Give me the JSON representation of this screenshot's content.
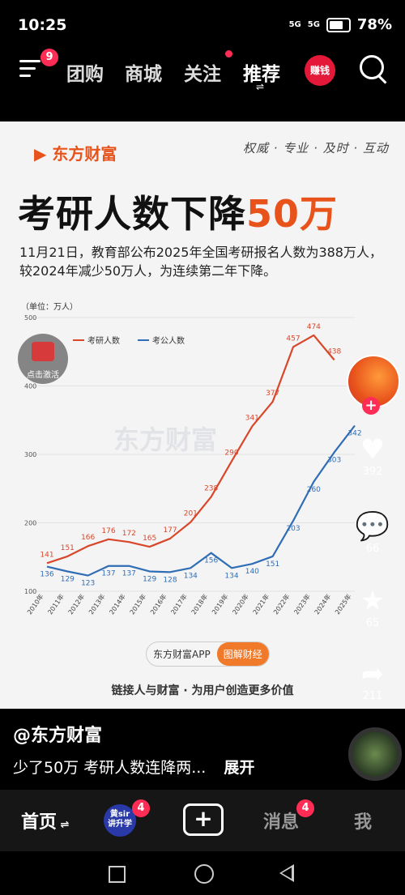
{
  "status": {
    "time": "10:25",
    "net1": "5G",
    "net2": "5G",
    "battery": "78%"
  },
  "nav": {
    "menu_badge": "9",
    "tabs": [
      "团购",
      "商城",
      "关注",
      "推荐"
    ],
    "earn_label": "赚钱"
  },
  "card": {
    "brand": "东方财富",
    "slogan": "权威 · 专业 · 及时 · 互动",
    "headline_main": "考研人数下降",
    "headline_accent": "50万",
    "description": "11月21日，教育部公布2025年全国考研报名人数为388万人，较2024年减少50万人，为连续第二年下降。",
    "unit": "（单位：万人）",
    "watermark": "东方财富",
    "app_label": "东方财富APP",
    "app_button": "图解财经",
    "tagline": "链接人与财富 · 为用户创造更多价值",
    "promo_label": "点击激活"
  },
  "chart_data": {
    "type": "line",
    "x": [
      "2010年",
      "2011年",
      "2012年",
      "2013年",
      "2014年",
      "2015年",
      "2016年",
      "2017年",
      "2018年",
      "2019年",
      "2020年",
      "2021年",
      "2022年",
      "2023年",
      "2024年",
      "2025年"
    ],
    "ylim": [
      100,
      500
    ],
    "yticks": [
      100,
      200,
      300,
      400,
      500
    ],
    "series": [
      {
        "name": "考研人数",
        "color": "#d9472b",
        "values": [
          141,
          151,
          166,
          176,
          172,
          165,
          177,
          201,
          238,
          290,
          341,
          377,
          457,
          474,
          438,
          null
        ]
      },
      {
        "name": "考公人数",
        "color": "#2f6db5",
        "values": [
          136,
          129,
          123,
          137,
          137,
          129,
          128,
          134,
          156,
          134,
          140,
          151,
          203,
          260,
          303,
          342
        ]
      }
    ]
  },
  "side": {
    "likes": "392",
    "comments": "66",
    "favorites": "65",
    "shares": "211"
  },
  "post": {
    "author": "@东方财富",
    "caption": "少了50万 考研人数连降两...",
    "expand": "展开"
  },
  "bottom": {
    "home": "首页",
    "learn_line1": "黄sir",
    "learn_line2": "讲升学",
    "learn_badge": "4",
    "messages": "消息",
    "messages_badge": "4",
    "me": "我"
  }
}
